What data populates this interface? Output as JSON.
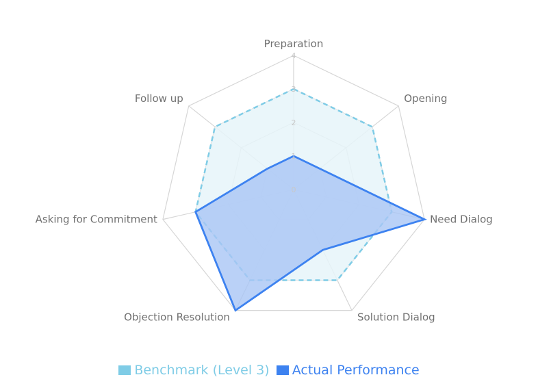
{
  "chart_data": {
    "type": "radar",
    "axes": [
      "Preparation",
      "Opening",
      "Need Dialog",
      "Solution Dialog",
      "Objection Resolution",
      "Asking for Commitment",
      "Follow up"
    ],
    "rmin": 0,
    "rmax": 4,
    "ticks": [
      "0",
      "1",
      "2",
      "3",
      "4"
    ],
    "series": [
      {
        "name": "Benchmark (Level 3)",
        "values": [
          3,
          3,
          3,
          3,
          3,
          3,
          3
        ],
        "color": "#7fcce6",
        "fill": "#e6f4f9",
        "line_style": "dashed"
      },
      {
        "name": "Actual Performance",
        "values": [
          1,
          1,
          4,
          2,
          4,
          3,
          1
        ],
        "color": "#3d82f0",
        "fill": "#a9c6f5",
        "line_style": "solid"
      }
    ],
    "grid": true,
    "legend_position": "bottom"
  }
}
